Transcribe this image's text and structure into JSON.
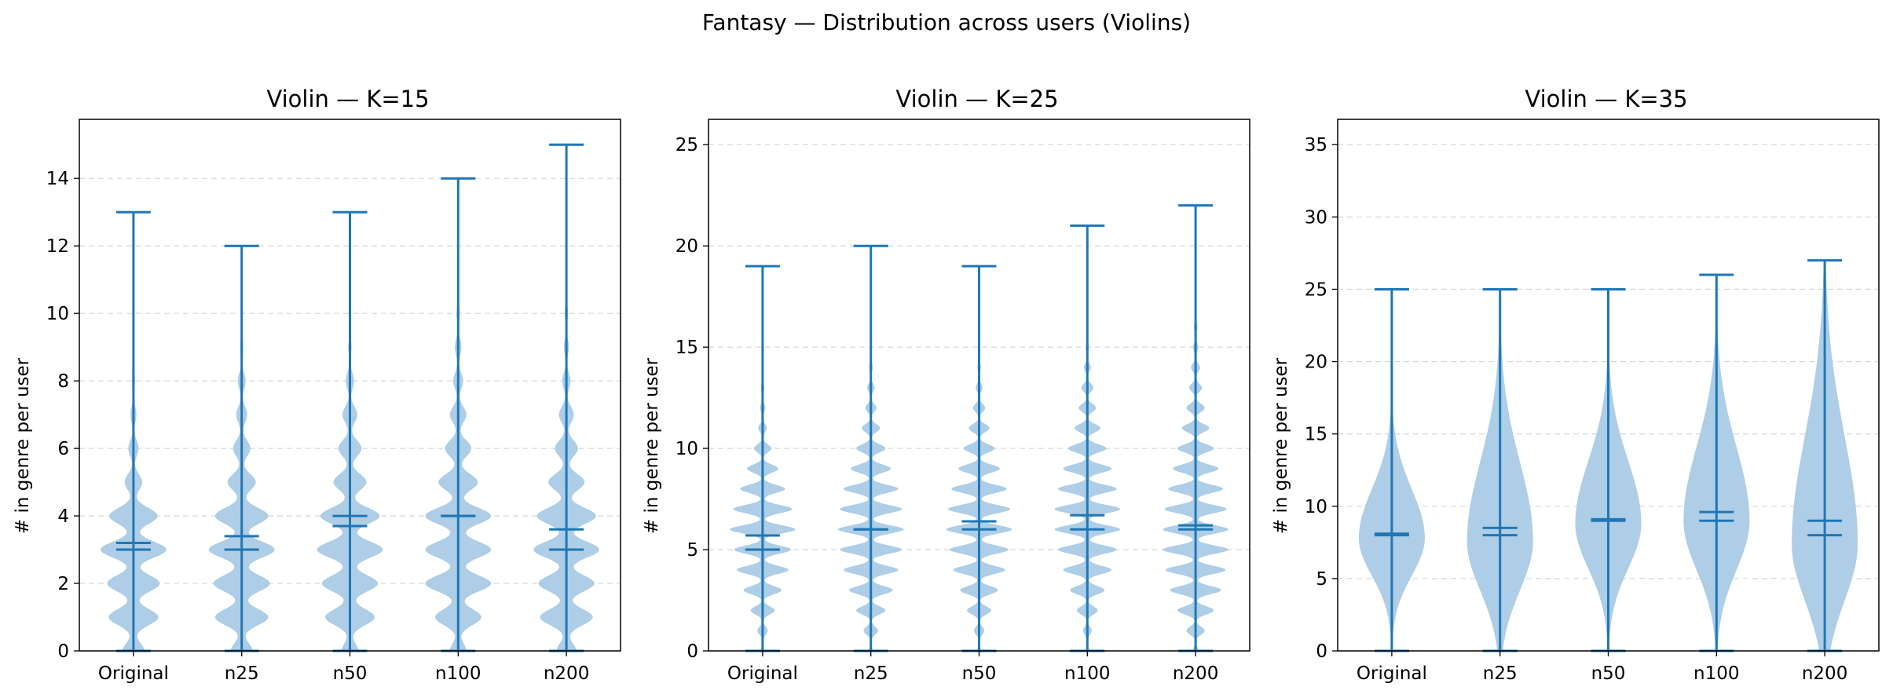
{
  "suptitle": "Fantasy — Distribution across users (Violins)",
  "colors": {
    "violin_fill": "#aecde6",
    "line": "#1f77b4",
    "grid": "#d9d9d9",
    "axis": "#000000"
  },
  "chart_data": [
    {
      "type": "violin",
      "title": "Violin — K=15",
      "ylabel": "# in genre per user",
      "xlabel": "",
      "ylim": [
        0,
        15.75
      ],
      "yticks": [
        0,
        2,
        4,
        6,
        8,
        10,
        12,
        14
      ],
      "grid": true,
      "categories": [
        "Original",
        "n25",
        "n50",
        "n100",
        "n200"
      ],
      "violins": [
        {
          "min": 0,
          "max": 13,
          "mean": 3.2,
          "median": 3,
          "discrete": true,
          "spread": 1.1,
          "weights": [
            0.15,
            0.34,
            0.36,
            0.45,
            0.33,
            0.12,
            0.07,
            0.04,
            0.02,
            0.01,
            0.01,
            0.005,
            0.003,
            0.002
          ]
        },
        {
          "min": 0,
          "max": 12,
          "mean": 3.4,
          "median": 3,
          "discrete": true,
          "spread": 1.1,
          "weights": [
            0.14,
            0.34,
            0.36,
            0.42,
            0.34,
            0.18,
            0.11,
            0.07,
            0.05,
            0.02,
            0.01,
            0.006,
            0.003
          ]
        },
        {
          "min": 0,
          "max": 13,
          "mean": 3.7,
          "median": 4,
          "discrete": true,
          "spread": 1.1,
          "weights": [
            0.1,
            0.3,
            0.34,
            0.4,
            0.36,
            0.2,
            0.14,
            0.09,
            0.05,
            0.02,
            0.01,
            0.006,
            0.003,
            0.002
          ]
        },
        {
          "min": 0,
          "max": 14,
          "mean": 4.0,
          "median": 4,
          "discrete": true,
          "spread": 1.1,
          "weights": [
            0.1,
            0.28,
            0.4,
            0.4,
            0.4,
            0.24,
            0.16,
            0.1,
            0.06,
            0.04,
            0.02,
            0.01,
            0.005,
            0.003,
            0.002
          ]
        },
        {
          "min": 0,
          "max": 15,
          "mean": 3.6,
          "median": 3,
          "discrete": true,
          "spread": 1.1,
          "weights": [
            0.12,
            0.32,
            0.34,
            0.4,
            0.36,
            0.22,
            0.14,
            0.09,
            0.05,
            0.03,
            0.02,
            0.01,
            0.005,
            0.003,
            0.002,
            0.001
          ]
        }
      ]
    },
    {
      "type": "violin",
      "title": "Violin — K=25",
      "ylabel": "# in genre per user",
      "xlabel": "",
      "ylim": [
        0,
        26.25
      ],
      "yticks": [
        0,
        5,
        10,
        15,
        20,
        25
      ],
      "grid": true,
      "categories": [
        "Original",
        "n25",
        "n50",
        "n100",
        "n200"
      ],
      "violins": [
        {
          "min": 0,
          "max": 19,
          "mean": 5.7,
          "median": 5,
          "discrete": true,
          "spread": 0.9,
          "weights": [
            0.02,
            0.06,
            0.14,
            0.22,
            0.3,
            0.33,
            0.38,
            0.34,
            0.26,
            0.18,
            0.1,
            0.05,
            0.03,
            0.02,
            0.01,
            0.005,
            0.003,
            0.002,
            0.001,
            0.001
          ]
        },
        {
          "min": 0,
          "max": 20,
          "mean": 6.0,
          "median": 6,
          "discrete": true,
          "spread": 0.9,
          "weights": [
            0.02,
            0.08,
            0.16,
            0.24,
            0.3,
            0.34,
            0.36,
            0.34,
            0.3,
            0.22,
            0.16,
            0.1,
            0.06,
            0.04,
            0.02,
            0.01,
            0.005,
            0.003,
            0.002,
            0.001,
            0.001
          ]
        },
        {
          "min": 0,
          "max": 19,
          "mean": 6.4,
          "median": 6,
          "discrete": true,
          "spread": 0.9,
          "weights": [
            0.02,
            0.06,
            0.14,
            0.22,
            0.3,
            0.34,
            0.38,
            0.36,
            0.32,
            0.24,
            0.18,
            0.12,
            0.07,
            0.04,
            0.02,
            0.01,
            0.005,
            0.003,
            0.002,
            0.001
          ]
        },
        {
          "min": 0,
          "max": 21,
          "mean": 6.7,
          "median": 6,
          "discrete": true,
          "spread": 0.9,
          "weights": [
            0.02,
            0.05,
            0.12,
            0.2,
            0.28,
            0.34,
            0.38,
            0.38,
            0.34,
            0.28,
            0.22,
            0.15,
            0.1,
            0.07,
            0.04,
            0.02,
            0.01,
            0.006,
            0.003,
            0.002,
            0.001,
            0.001
          ]
        },
        {
          "min": 0,
          "max": 22,
          "mean": 6.2,
          "median": 6,
          "discrete": true,
          "spread": 0.9,
          "weights": [
            0.03,
            0.1,
            0.2,
            0.28,
            0.33,
            0.36,
            0.36,
            0.34,
            0.3,
            0.25,
            0.2,
            0.15,
            0.1,
            0.07,
            0.05,
            0.03,
            0.02,
            0.01,
            0.006,
            0.003,
            0.002,
            0.001,
            0.001
          ]
        }
      ]
    },
    {
      "type": "violin",
      "title": "Violin — K=35",
      "ylabel": "# in genre per user",
      "xlabel": "",
      "ylim": [
        0,
        36.75
      ],
      "yticks": [
        0,
        5,
        10,
        15,
        20,
        25,
        30,
        35
      ],
      "grid": true,
      "categories": [
        "Original",
        "n25",
        "n50",
        "n100",
        "n200"
      ],
      "violins": [
        {
          "min": 0,
          "max": 25,
          "mean": 8.1,
          "median": 8,
          "discrete": false,
          "mu": 7.8,
          "sd": 2.6,
          "skew": 0.3
        },
        {
          "min": 0,
          "max": 25,
          "mean": 8.5,
          "median": 8,
          "discrete": false,
          "mu": 7.6,
          "sd": 3.4,
          "skew": 0.6
        },
        {
          "min": 0,
          "max": 25,
          "mean": 9.1,
          "median": 9,
          "discrete": false,
          "mu": 8.8,
          "sd": 3.1,
          "skew": 0.4
        },
        {
          "min": 0,
          "max": 26,
          "mean": 9.6,
          "median": 9,
          "discrete": false,
          "mu": 9.0,
          "sd": 3.4,
          "skew": 0.5
        },
        {
          "min": 0,
          "max": 27,
          "mean": 9.0,
          "median": 8,
          "discrete": false,
          "mu": 7.4,
          "sd": 3.9,
          "skew": 0.9
        }
      ]
    }
  ]
}
